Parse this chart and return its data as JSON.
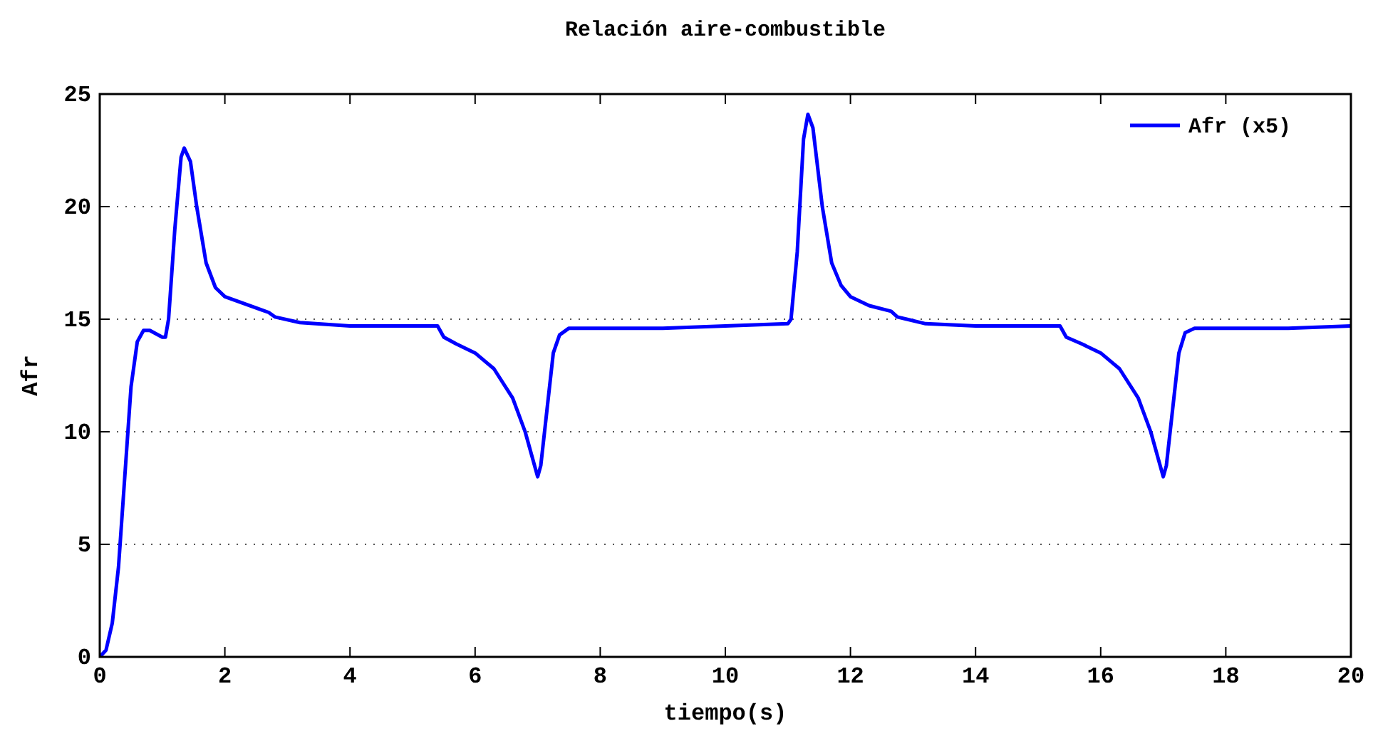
{
  "chart_data": {
    "type": "line",
    "title": "Relación aire-combustible",
    "xlabel": "tiempo(s)",
    "ylabel": "Afr",
    "xlim": [
      0,
      20
    ],
    "xticks": [
      0,
      2,
      4,
      6,
      8,
      10,
      12,
      14,
      16,
      18,
      20
    ],
    "ylim": [
      0,
      25
    ],
    "yticks": [
      0,
      5,
      10,
      15,
      20,
      25
    ],
    "grid": "y",
    "legend": "top right",
    "series": [
      {
        "name": "Afr (x5)",
        "color": "#0000ff",
        "x": [
          0,
          0.1,
          0.2,
          0.3,
          0.4,
          0.5,
          0.6,
          0.7,
          0.8,
          1.0,
          1.05,
          1.1,
          1.2,
          1.3,
          1.35,
          1.45,
          1.55,
          1.7,
          1.85,
          2.0,
          2.3,
          2.6,
          2.7,
          2.8,
          3.2,
          4,
          5,
          5.4,
          5.5,
          5.7,
          6.0,
          6.3,
          6.6,
          6.8,
          6.95,
          7.0,
          7.05,
          7.15,
          7.25,
          7.35,
          7.5,
          8,
          9,
          10,
          11.0,
          11.05,
          11.15,
          11.25,
          11.32,
          11.4,
          11.55,
          11.7,
          11.85,
          12.0,
          12.3,
          12.65,
          12.75,
          13.2,
          14,
          15.35,
          15.45,
          15.7,
          16,
          16.3,
          16.6,
          16.8,
          16.95,
          17.0,
          17.05,
          17.15,
          17.25,
          17.35,
          17.5,
          18,
          19,
          20
        ],
        "values": [
          0,
          0.3,
          1.5,
          4,
          8,
          12,
          14,
          14.5,
          14.5,
          14.2,
          14.2,
          15,
          19,
          22.2,
          22.6,
          22,
          20,
          17.5,
          16.4,
          16.0,
          15.7,
          15.4,
          15.3,
          15.1,
          14.85,
          14.7,
          14.7,
          14.7,
          14.2,
          13.9,
          13.5,
          12.8,
          11.5,
          10,
          8.5,
          8.0,
          8.5,
          11,
          13.5,
          14.3,
          14.6,
          14.6,
          14.6,
          14.7,
          14.8,
          15,
          18,
          23,
          24.1,
          23.5,
          20,
          17.5,
          16.5,
          16.0,
          15.6,
          15.35,
          15.1,
          14.8,
          14.7,
          14.7,
          14.2,
          13.9,
          13.5,
          12.8,
          11.5,
          10,
          8.5,
          8.0,
          8.5,
          11,
          13.5,
          14.4,
          14.6,
          14.6,
          14.6,
          14.7
        ]
      }
    ]
  }
}
